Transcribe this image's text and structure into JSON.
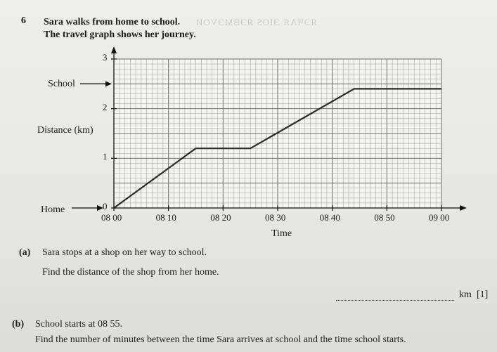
{
  "question": {
    "number": "6",
    "intro_line1": "Sara walks from home to school.",
    "intro_line2": "The travel graph shows her journey.",
    "ghost_text": "ЯЭЧАЯ ЭІОЅ ЯЭВМЭVОИ"
  },
  "chart_data": {
    "type": "line",
    "title": "",
    "xlabel": "Time",
    "ylabel": "Distance (km)",
    "x_ticks": [
      "08 00",
      "08 10",
      "08 20",
      "08 30",
      "08 40",
      "08 50",
      "09 00"
    ],
    "y_ticks": [
      "0",
      "1",
      "2",
      "3"
    ],
    "xlim": [
      "08:00",
      "09:00"
    ],
    "ylim": [
      0,
      3
    ],
    "grid": true,
    "series": [
      {
        "x": [
          "08:00",
          "08:15",
          "08:25",
          "08:44",
          "09:00"
        ],
        "y": [
          0,
          1.2,
          1.2,
          2.4,
          2.4
        ]
      }
    ],
    "annotations": {
      "school": "School",
      "home": "Home"
    }
  },
  "parts": {
    "a_label": "(a)",
    "a_text": "Sara stops at a shop on her way to school.",
    "a_question": "Find the distance of the shop from her home.",
    "a_unit": "km",
    "a_marks": "[1]",
    "b_label": "(b)",
    "b_text": "School starts at 08 55.",
    "b_question": "Find the number of minutes between the time Sara arrives at school and the time school starts."
  }
}
